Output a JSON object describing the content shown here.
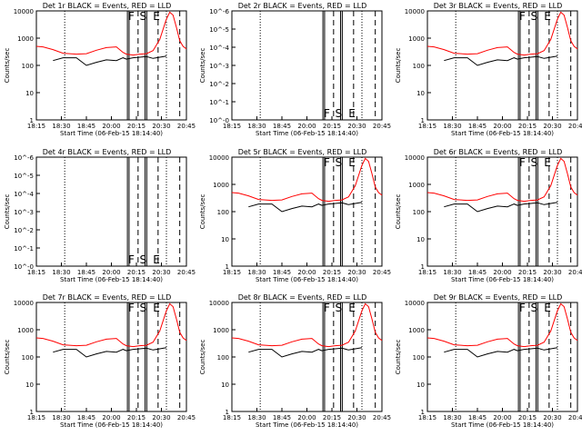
{
  "chart_data": {
    "type": "line",
    "xlabel": "Start Time (06-Feb-15 18:14:40)",
    "ylabel": "Counts/sec",
    "x_ticks": [
      "18:15",
      "18:30",
      "18:45",
      "20:00",
      "20:15",
      "20:30",
      "20:45"
    ],
    "x_units": "minutes since 18:15",
    "x_range": [
      0,
      45
    ],
    "y_ticks": [
      "1",
      "10",
      "100",
      "1000",
      "10000"
    ],
    "y_ticks_small": [
      "10^-0",
      "10^-1",
      "10^-2",
      "10^-3",
      "10^-4",
      "10^-5",
      "10^-6"
    ],
    "markers": [
      "F",
      "S",
      "E"
    ],
    "series_legend": {
      "black": "Events",
      "red": "LLD"
    },
    "panels": [
      {
        "title": "Det 1r BLACK = Events, RED = LLD",
        "has_data": true
      },
      {
        "title": "Det 2r BLACK = Events, RED = LLD",
        "has_data": false
      },
      {
        "title": "Det 3r BLACK = Events, RED = LLD",
        "has_data": true
      },
      {
        "title": "Det 4r BLACK = Events, RED = LLD",
        "has_data": false
      },
      {
        "title": "Det 5r BLACK = Events, RED = LLD",
        "has_data": true
      },
      {
        "title": "Det 6r BLACK = Events, RED = LLD",
        "has_data": true
      },
      {
        "title": "Det 7r BLACK = Events, RED = LLD",
        "has_data": true
      },
      {
        "title": "Det 8r BLACK = Events, RED = LLD",
        "has_data": true
      },
      {
        "title": "Det 9r BLACK = Events, RED = LLD",
        "has_data": true
      }
    ],
    "red_lld_profile": {
      "x": [
        0,
        2,
        5,
        8,
        12,
        15,
        18,
        21,
        24,
        26,
        27,
        29,
        31,
        33,
        35,
        37,
        39,
        40,
        41,
        42,
        43,
        44,
        45
      ],
      "y": [
        500,
        480,
        380,
        280,
        260,
        270,
        360,
        450,
        480,
        300,
        260,
        240,
        260,
        270,
        350,
        900,
        5000,
        9000,
        7000,
        2500,
        800,
        500,
        400
      ]
    },
    "black_events_profile": {
      "x": [
        0,
        2,
        5,
        8,
        12,
        15,
        18,
        21,
        24,
        26,
        27,
        29,
        31,
        33,
        35,
        37,
        39,
        40,
        41,
        42,
        43,
        44,
        45
      ],
      "y": [
        null,
        null,
        150,
        190,
        190,
        100,
        130,
        160,
        150,
        190,
        170,
        190,
        200,
        210,
        180,
        200,
        220,
        null,
        null,
        null,
        null,
        null,
        null
      ]
    },
    "vertical_lines": {
      "solid_minutes": [
        27.3,
        27.8,
        32.6,
        33.1
      ],
      "dashed_minutes": [
        30.5,
        36.5,
        43
      ],
      "dotted_minutes": [
        8.5,
        39
      ]
    },
    "colors": {
      "lld": "#ff0000",
      "events": "#000000"
    }
  }
}
